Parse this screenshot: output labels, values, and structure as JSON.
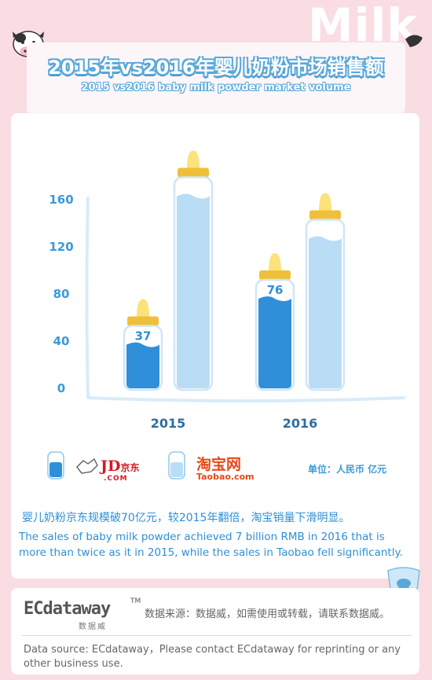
{
  "header": {
    "decor_text": "Milk",
    "title_cn": "2015年vs2016年婴儿奶粉市场销售额",
    "title_en": "2015 vs2016 baby milk powder market volume"
  },
  "chart_data": {
    "type": "bar",
    "categories": [
      "2015",
      "2016"
    ],
    "series": [
      {
        "name": "JD.COM 京东",
        "values": [
          37,
          76
        ],
        "color": "#2f8fd8"
      },
      {
        "name": "Taobao.com 淘宝网",
        "values": [
          163,
          127
        ],
        "color": "#b9ddf5"
      }
    ],
    "y_ticks": [
      0,
      40,
      80,
      120,
      160
    ],
    "ylim": [
      0,
      175
    ],
    "unit": "单位：人民币 亿元",
    "grid": false,
    "legend_position": "bottom"
  },
  "legend": {
    "jd_mark": "JD",
    "jd_cn": "京东",
    "jd_com": ".COM",
    "taobao_cn": "淘宝网",
    "taobao_en": "Taobao.com"
  },
  "unit_label": "单位：人民币 亿元",
  "summary": {
    "cn": "婴儿奶粉京东规模破70亿元，较2015年翻倍，淘宝销量下滑明显。",
    "en": "The sales of baby milk powder achieved 7 billion RMB in 2016 that is more than twice as it in 2015, while the sales in Taobao fell significantly."
  },
  "footer": {
    "logo": "ECdataway",
    "tm": "TM",
    "logo_cn": "数据威",
    "source_cn": "数据来源：数据威，如需使用或转载，请联系数据威。",
    "source_en": "Data source:  ECdataway，Please contact ECdataway for reprinting or any other business use."
  },
  "colors": {
    "background": "#f9dde3",
    "accent": "#3a9ad9",
    "jd_bar": "#2f8fd8",
    "taobao_bar": "#b9ddf5",
    "nipple": "#fbe27a",
    "cap": "#f0bf3a"
  }
}
